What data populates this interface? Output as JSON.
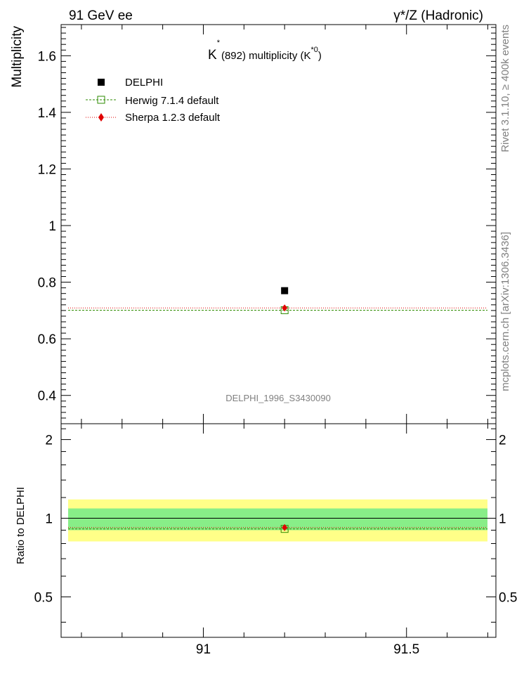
{
  "header": {
    "left": "91 GeV ee",
    "right": "γ*/Z (Hadronic)"
  },
  "side_label_top": "Rivet 3.1.10, ≥ 400k events",
  "side_label_bottom": "mcplots.cern.ch [arXiv:1306.3436]",
  "chart_data": [
    {
      "type": "scatter",
      "title_main": "K",
      "title_sup": "*",
      "title_mid": "(892) multiplicity (K",
      "title_sup2": "*0",
      "title_end": ")",
      "ylabel": "Multiplicity",
      "xlim": [
        90.65,
        91.72
      ],
      "ylim": [
        0.3,
        1.71
      ],
      "yticks": [
        0.4,
        0.6,
        0.8,
        1.0,
        1.2,
        1.4,
        1.6
      ],
      "ytick_labels": [
        "0.4",
        "0.6",
        "0.8",
        "1",
        "1.2",
        "1.4",
        "1.6"
      ],
      "watermark": "DELPHI_1996_S3430090",
      "legend_position": "top-left",
      "series": [
        {
          "name": "DELPHI",
          "color": "#000000",
          "marker": "filled-square",
          "x": [
            91.2
          ],
          "y": [
            0.77
          ]
        },
        {
          "name": "Herwig 7.1.4 default",
          "color": "#2e8b00",
          "marker": "open-square",
          "line": "dashed",
          "x": [
            91.2
          ],
          "y": [
            0.701
          ]
        },
        {
          "name": "Sherpa 1.2.3 default",
          "color": "#e00000",
          "marker": "filled-diamond",
          "line": "dotted",
          "x": [
            91.2
          ],
          "y": [
            0.709
          ]
        }
      ]
    },
    {
      "type": "scatter",
      "ylabel": "Ratio to DELPHI",
      "xlim": [
        90.65,
        91.72
      ],
      "ylim": [
        0.35,
        2.3
      ],
      "yticks": [
        0.5,
        1,
        2
      ],
      "ytick_labels": [
        "0.5",
        "1",
        "2"
      ],
      "xticks": [
        91,
        91.5
      ],
      "xtick_labels": [
        "91",
        "91.5"
      ],
      "bands": [
        {
          "color": "#ffff88",
          "range": [
            0.815,
            1.18
          ]
        },
        {
          "color": "#88ee88",
          "range": [
            0.9,
            1.09
          ]
        }
      ],
      "series": [
        {
          "name": "Herwig 7.1.4 default",
          "color": "#2e8b00",
          "x": [
            91.2
          ],
          "y": [
            0.91
          ]
        },
        {
          "name": "Sherpa 1.2.3 default",
          "color": "#e00000",
          "x": [
            91.2
          ],
          "y": [
            0.921
          ]
        }
      ]
    }
  ]
}
